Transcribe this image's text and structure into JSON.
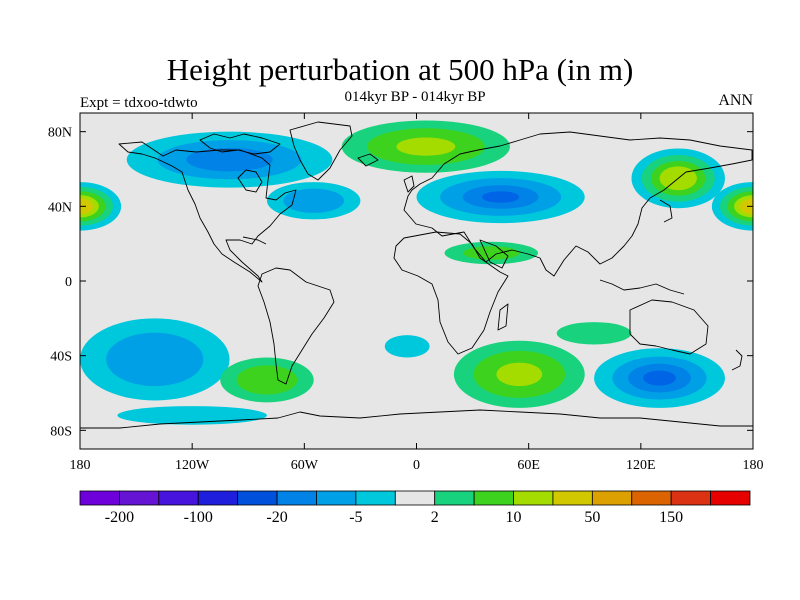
{
  "map": {
    "title": "Height perturbation at 500 hPa (in m)",
    "experiment_label": "Expt = tdxoo-tdwto",
    "subtitle": "014kyr BP - 014kyr BP",
    "season_label": "ANN",
    "projection": "cylindrical equidistant",
    "extent": {
      "lon_min": -180,
      "lon_max": 180,
      "lat_min": -90,
      "lat_max": 90
    },
    "lat_ticks": [
      {
        "value": 80,
        "label": "80N"
      },
      {
        "value": 40,
        "label": "40N"
      },
      {
        "value": 0,
        "label": "0"
      },
      {
        "value": -40,
        "label": "40S"
      },
      {
        "value": -80,
        "label": "80S"
      }
    ],
    "lon_ticks": [
      {
        "value": -180,
        "label": "180"
      },
      {
        "value": -120,
        "label": "120W"
      },
      {
        "value": -60,
        "label": "60W"
      },
      {
        "value": 0,
        "label": "0"
      },
      {
        "value": 60,
        "label": "60E"
      },
      {
        "value": 120,
        "label": "120E"
      },
      {
        "value": 180,
        "label": "180"
      }
    ],
    "background_color": "#e6e6e6",
    "fields": [
      {
        "name": "north-pacific-west-high",
        "lon": -180,
        "lat": 40,
        "rx": 22,
        "ry": 13,
        "levels": [
          {
            "s": 1.0,
            "c": "#00c8dc"
          },
          {
            "s": 0.8,
            "c": "#19d27d"
          },
          {
            "s": 0.62,
            "c": "#3cd21e"
          },
          {
            "s": 0.46,
            "c": "#a5dc00"
          },
          {
            "s": 0.32,
            "c": "#d2c800"
          }
        ]
      },
      {
        "name": "north-pacific-east-high",
        "lon": 180,
        "lat": 40,
        "rx": 22,
        "ry": 13,
        "levels": [
          {
            "s": 1.0,
            "c": "#00c8dc"
          },
          {
            "s": 0.8,
            "c": "#19d27d"
          },
          {
            "s": 0.62,
            "c": "#3cd21e"
          },
          {
            "s": 0.46,
            "c": "#a5dc00"
          },
          {
            "s": 0.32,
            "c": "#d2c800"
          }
        ]
      },
      {
        "name": "east-asia-high",
        "lon": 140,
        "lat": 55,
        "rx": 25,
        "ry": 16,
        "levels": [
          {
            "s": 1.0,
            "c": "#00c8dc"
          },
          {
            "s": 0.78,
            "c": "#19d27d"
          },
          {
            "s": 0.58,
            "c": "#3cd21e"
          },
          {
            "s": 0.4,
            "c": "#a5dc00"
          }
        ]
      },
      {
        "name": "north-america-arctic-low",
        "lon": -100,
        "lat": 65,
        "rx": 55,
        "ry": 15,
        "levels": [
          {
            "s": 1.0,
            "c": "#00c8dc"
          },
          {
            "s": 0.7,
            "c": "#00a0e6"
          },
          {
            "s": 0.42,
            "c": "#0082e6"
          }
        ]
      },
      {
        "name": "eurasia-low",
        "lon": 45,
        "lat": 45,
        "rx": 45,
        "ry": 14,
        "levels": [
          {
            "s": 1.0,
            "c": "#00c8dc"
          },
          {
            "s": 0.72,
            "c": "#00a0e6"
          },
          {
            "s": 0.45,
            "c": "#0082e6"
          },
          {
            "s": 0.22,
            "c": "#0064e6"
          }
        ]
      },
      {
        "name": "north-atlantic-low",
        "lon": -55,
        "lat": 43,
        "rx": 25,
        "ry": 10,
        "levels": [
          {
            "s": 1.0,
            "c": "#00c8dc"
          },
          {
            "s": 0.65,
            "c": "#00a0e6"
          }
        ]
      },
      {
        "name": "greenland-arctic-high",
        "lon": 5,
        "lat": 72,
        "rx": 45,
        "ry": 14,
        "levels": [
          {
            "s": 1.0,
            "c": "#19d27d"
          },
          {
            "s": 0.7,
            "c": "#3cd21e"
          },
          {
            "s": 0.35,
            "c": "#a5dc00"
          }
        ]
      },
      {
        "name": "tropical-atlantic-high",
        "lon": 40,
        "lat": 15,
        "rx": 25,
        "ry": 6,
        "levels": [
          {
            "s": 1.0,
            "c": "#19d27d"
          },
          {
            "s": 0.6,
            "c": "#3cd21e"
          }
        ]
      },
      {
        "name": "south-pacific-low",
        "lon": -140,
        "lat": -42,
        "rx": 40,
        "ry": 22,
        "levels": [
          {
            "s": 1.0,
            "c": "#00c8dc"
          },
          {
            "s": 0.65,
            "c": "#00a0e6"
          }
        ]
      },
      {
        "name": "south-pacific-high",
        "lon": -80,
        "lat": -53,
        "rx": 25,
        "ry": 12,
        "levels": [
          {
            "s": 1.0,
            "c": "#19d27d"
          },
          {
            "s": 0.65,
            "c": "#3cd21e"
          }
        ]
      },
      {
        "name": "south-atlantic-low",
        "lon": -5,
        "lat": -35,
        "rx": 12,
        "ry": 6,
        "levels": [
          {
            "s": 1.0,
            "c": "#00c8dc"
          }
        ]
      },
      {
        "name": "southern-indian-ocean-high",
        "lon": 55,
        "lat": -50,
        "rx": 35,
        "ry": 18,
        "levels": [
          {
            "s": 1.0,
            "c": "#19d27d"
          },
          {
            "s": 0.7,
            "c": "#3cd21e"
          },
          {
            "s": 0.35,
            "c": "#a5dc00"
          }
        ]
      },
      {
        "name": "australia-south-low",
        "lon": 130,
        "lat": -52,
        "rx": 35,
        "ry": 16,
        "levels": [
          {
            "s": 1.0,
            "c": "#00c8dc"
          },
          {
            "s": 0.72,
            "c": "#00a0e6"
          },
          {
            "s": 0.48,
            "c": "#0082e6"
          },
          {
            "s": 0.25,
            "c": "#0064e6"
          }
        ]
      },
      {
        "name": "south-indian-ocean-high",
        "lon": 95,
        "lat": -28,
        "rx": 20,
        "ry": 6,
        "levels": [
          {
            "s": 1.0,
            "c": "#19d27d"
          }
        ]
      },
      {
        "name": "antarctic-edge-low",
        "lon": -120,
        "lat": -72,
        "rx": 40,
        "ry": 5,
        "levels": [
          {
            "s": 1.0,
            "c": "#00c8dc"
          }
        ]
      }
    ]
  },
  "colorbar": {
    "colors": [
      "#6e00dc",
      "#6414d2",
      "#4614dc",
      "#1e1edc",
      "#0050dc",
      "#0082e6",
      "#00a0e6",
      "#00c8dc",
      "#e6e6e6",
      "#19d27d",
      "#3cd21e",
      "#a5dc00",
      "#d2c800",
      "#dca000",
      "#dc6400",
      "#dc3214",
      "#e60000"
    ],
    "labels": [
      {
        "after_box": 1,
        "text": "-200"
      },
      {
        "after_box": 3,
        "text": "-100"
      },
      {
        "after_box": 5,
        "text": "-20"
      },
      {
        "after_box": 7,
        "text": "-5"
      },
      {
        "after_box": 9,
        "text": "2"
      },
      {
        "after_box": 11,
        "text": "10"
      },
      {
        "after_box": 13,
        "text": "50"
      },
      {
        "after_box": 15,
        "text": "150"
      }
    ]
  }
}
